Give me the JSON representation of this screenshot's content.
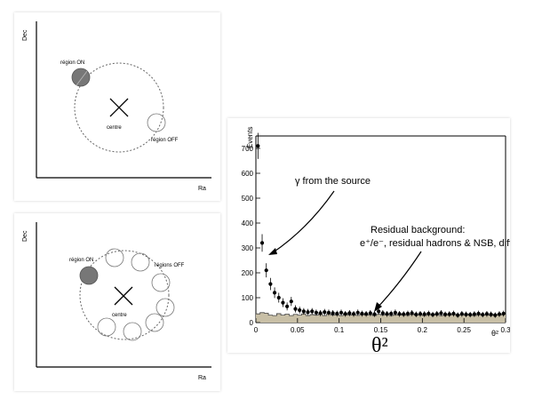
{
  "diagram_top": {
    "axis_y_label": "Dec",
    "axis_x_label": "Ra",
    "on_region_label": "région ON",
    "center_label": "centre",
    "off_region_label": "région OFF"
  },
  "diagram_bottom": {
    "axis_y_label": "Dec",
    "axis_x_label": "Ra",
    "on_region_label": "région ON",
    "center_label": "centre",
    "off_regions_label": "régions OFF"
  },
  "chart_data": {
    "type": "scatter",
    "ylabel": "Events",
    "xlabel": "θ²",
    "below_axis_label": "θ²",
    "xlim": [
      0,
      0.3
    ],
    "ylim": [
      0,
      750
    ],
    "x_ticks": [
      "0",
      "0.05",
      "0.1",
      "0.15",
      "0.2",
      "0.25",
      "0.3"
    ],
    "y_ticks": [
      "0",
      "100",
      "200",
      "300",
      "400",
      "500",
      "600",
      "700"
    ],
    "annotations": {
      "source": "γ from the source",
      "background_line1": "Residual background:",
      "background_line2": "e⁺/e⁻, residual hadrons & NSB, diffuse γ"
    },
    "series": [
      {
        "kind": "on_points",
        "x": [
          0.0025,
          0.0075,
          0.0125,
          0.0175,
          0.0225,
          0.0275,
          0.0325,
          0.0375,
          0.0425,
          0.0475,
          0.0525,
          0.0575,
          0.0625,
          0.0675,
          0.0725,
          0.0775,
          0.0825,
          0.0875,
          0.0925,
          0.0975,
          0.1025,
          0.1075,
          0.1125,
          0.1175,
          0.1225,
          0.1275,
          0.1325,
          0.1375,
          0.1425,
          0.1475,
          0.1525,
          0.1575,
          0.1625,
          0.1675,
          0.1725,
          0.1775,
          0.1825,
          0.1875,
          0.1925,
          0.1975,
          0.2025,
          0.2075,
          0.2125,
          0.2175,
          0.2225,
          0.2275,
          0.2325,
          0.2375,
          0.2425,
          0.2475,
          0.2525,
          0.2575,
          0.2625,
          0.2675,
          0.2725,
          0.2775,
          0.2825,
          0.2875,
          0.2925,
          0.2975
        ],
        "y": [
          710,
          320,
          210,
          155,
          120,
          100,
          80,
          65,
          85,
          55,
          50,
          45,
          42,
          45,
          40,
          38,
          42,
          40,
          38,
          36,
          40,
          35,
          38,
          35,
          40,
          36,
          35,
          38,
          34,
          45,
          38,
          35,
          36,
          40,
          35,
          34,
          36,
          38,
          33,
          35,
          34,
          36,
          32,
          35,
          38,
          33,
          34,
          36,
          30,
          35,
          33,
          32,
          34,
          36,
          32,
          35,
          33,
          30,
          34,
          36
        ]
      },
      {
        "kind": "off_histogram",
        "x": [
          0.0025,
          0.0075,
          0.0125,
          0.0175,
          0.0225,
          0.0275,
          0.0325,
          0.0375,
          0.0425,
          0.0475,
          0.0525,
          0.0575,
          0.0625,
          0.0675,
          0.0725,
          0.0775,
          0.0825,
          0.0875,
          0.0925,
          0.0975,
          0.1025,
          0.1075,
          0.1125,
          0.1175,
          0.1225,
          0.1275,
          0.1325,
          0.1375,
          0.1425,
          0.1475,
          0.1525,
          0.1575,
          0.1625,
          0.1675,
          0.1725,
          0.1775,
          0.1825,
          0.1875,
          0.1925,
          0.1975,
          0.2025,
          0.2075,
          0.2125,
          0.2175,
          0.2225,
          0.2275,
          0.2325,
          0.2375,
          0.2425,
          0.2475,
          0.2525,
          0.2575,
          0.2625,
          0.2675,
          0.2725,
          0.2775,
          0.2825,
          0.2875,
          0.2925,
          0.2975
        ],
        "y": [
          35,
          40,
          38,
          30,
          28,
          36,
          30,
          34,
          28,
          33,
          30,
          35,
          28,
          32,
          30,
          33,
          28,
          35,
          30,
          32,
          28,
          36,
          30,
          32,
          29,
          34,
          30,
          32,
          28,
          33,
          30,
          34,
          28,
          32,
          30,
          33,
          29,
          34,
          30,
          31,
          28,
          33,
          30,
          34,
          28,
          32,
          30,
          33,
          29,
          31,
          30,
          32,
          28,
          33,
          30,
          31,
          29,
          32,
          30,
          33
        ]
      }
    ]
  }
}
